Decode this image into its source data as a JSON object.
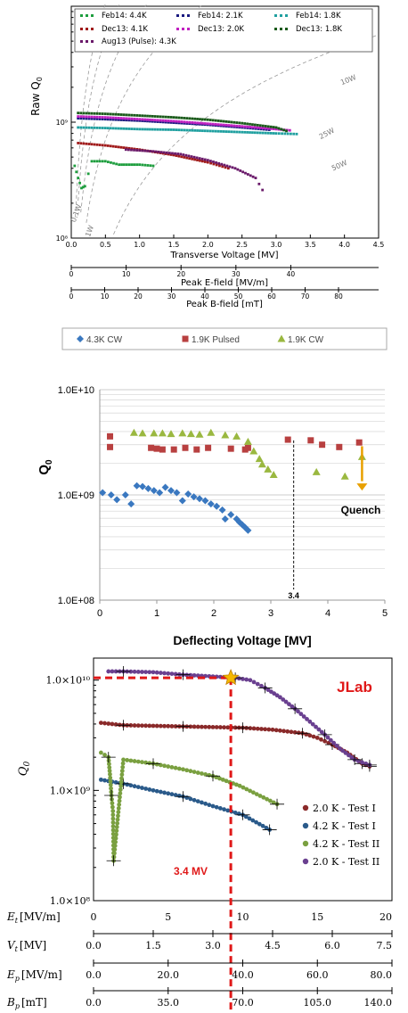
{
  "chart_data": [
    {
      "type": "scatter",
      "ylabel": "Raw Q",
      "ylabel_sub": "0",
      "ylog": true,
      "xlabel": "Transverse Voltage [MV]",
      "xlim": [
        0,
        4.5
      ],
      "ylim": [
        100000000.0,
        10000000000.0
      ],
      "xticks": [
        "0.0",
        "0.5",
        "1.0",
        "1.5",
        "2.0",
        "2.5",
        "3.0",
        "3.5",
        "4.0",
        "4.5"
      ],
      "yticks": [
        "10⁹",
        "10⁸"
      ],
      "extra_axes": [
        {
          "label": "Peak E-field [MV/m]",
          "ticks": [
            "0",
            "10",
            "20",
            "30",
            "40"
          ],
          "max": 56
        },
        {
          "label": "Peak B-field [mT]",
          "ticks": [
            "0",
            "10",
            "20",
            "30",
            "40",
            "50",
            "60",
            "70",
            "80"
          ],
          "max": 92
        }
      ],
      "power_curves": [
        "0.1W",
        "1W",
        "10W",
        "25W",
        "50W"
      ],
      "legend_position": "top",
      "series": [
        {
          "name": "Feb14: 4.4K",
          "color": "#1e9e3e",
          "points": [
            [
              0.05,
              0.42
            ],
            [
              0.1,
              0.33
            ],
            [
              0.15,
              0.27
            ],
            [
              0.2,
              0.28
            ],
            [
              0.3,
              0.46
            ],
            [
              0.5,
              0.46
            ],
            [
              0.7,
              0.43
            ],
            [
              1.0,
              0.43
            ],
            [
              1.2,
              0.42
            ]
          ]
        },
        {
          "name": "Dec13: 4.1K",
          "color": "#a01a1a",
          "points": [
            [
              0.1,
              0.66
            ],
            [
              0.5,
              0.63
            ],
            [
              1.0,
              0.58
            ],
            [
              1.5,
              0.52
            ],
            [
              2.0,
              0.45
            ],
            [
              2.3,
              0.4
            ]
          ]
        },
        {
          "name": "Aug13 (Pulse): 4.3K",
          "color": "#6a1a6a",
          "points": [
            [
              0.8,
              0.58
            ],
            [
              1.2,
              0.56
            ],
            [
              1.6,
              0.53
            ],
            [
              2.0,
              0.47
            ],
            [
              2.4,
              0.4
            ],
            [
              2.7,
              0.33
            ],
            [
              2.8,
              0.26
            ]
          ]
        },
        {
          "name": "Feb14: 2.1K",
          "color": "#1a1a80",
          "points": [
            [
              0.1,
              1.08
            ],
            [
              0.5,
              1.06
            ],
            [
              1.0,
              1.03
            ],
            [
              1.5,
              0.99
            ],
            [
              2.0,
              0.95
            ],
            [
              2.5,
              0.9
            ],
            [
              2.9,
              0.86
            ]
          ]
        },
        {
          "name": "Dec13: 2.0K",
          "color": "#c020c0",
          "points": [
            [
              0.1,
              1.12
            ],
            [
              0.5,
              1.1
            ],
            [
              1.0,
              1.06
            ],
            [
              1.5,
              1.02
            ],
            [
              2.0,
              0.97
            ],
            [
              2.5,
              0.92
            ],
            [
              3.0,
              0.87
            ],
            [
              3.2,
              0.85
            ]
          ]
        },
        {
          "name": "Feb14: 1.8K",
          "color": "#20a0a0",
          "points": [
            [
              0.1,
              0.9
            ],
            [
              0.5,
              0.89
            ],
            [
              1.0,
              0.87
            ],
            [
              1.5,
              0.86
            ],
            [
              2.0,
              0.84
            ],
            [
              2.5,
              0.82
            ],
            [
              3.0,
              0.8
            ],
            [
              3.3,
              0.79
            ]
          ]
        },
        {
          "name": "Dec13: 1.8K",
          "color": "#1a5a1a",
          "points": [
            [
              0.1,
              1.2
            ],
            [
              0.5,
              1.18
            ],
            [
              1.0,
              1.14
            ],
            [
              1.5,
              1.1
            ],
            [
              2.0,
              1.05
            ],
            [
              2.5,
              0.98
            ],
            [
              3.0,
              0.9
            ],
            [
              3.15,
              0.84
            ]
          ]
        }
      ]
    },
    {
      "type": "scatter",
      "ylabel": "Q",
      "ylabel_sub": "0",
      "ylog": true,
      "xlabel": "Deflecting Voltage [MV]",
      "xlim": [
        0,
        5
      ],
      "ylim": [
        100000000.0,
        10000000000.0
      ],
      "xticks": [
        "0",
        "1",
        "2",
        "3",
        "4",
        "5"
      ],
      "yticks": [
        "1.0E+10",
        "1.0E+09",
        "1.0E+08"
      ],
      "legend_position": "top",
      "annotations": [
        "3.4",
        "Quench"
      ],
      "series": [
        {
          "name": "4.3K CW",
          "color": "#3a78c0",
          "points": [
            [
              0.05,
              1050000000.0
            ],
            [
              0.2,
              1000000000.0
            ],
            [
              0.3,
              900000000.0
            ],
            [
              0.45,
              1000000000.0
            ],
            [
              0.55,
              820000000.0
            ],
            [
              0.65,
              1220000000.0
            ],
            [
              0.75,
              1200000000.0
            ],
            [
              0.85,
              1150000000.0
            ],
            [
              0.95,
              1100000000.0
            ],
            [
              1.05,
              1050000000.0
            ],
            [
              1.15,
              1180000000.0
            ],
            [
              1.25,
              1100000000.0
            ],
            [
              1.35,
              1050000000.0
            ],
            [
              1.45,
              880000000.0
            ],
            [
              1.55,
              1020000000.0
            ],
            [
              1.65,
              960000000.0
            ],
            [
              1.75,
              920000000.0
            ],
            [
              1.85,
              880000000.0
            ],
            [
              1.95,
              820000000.0
            ],
            [
              2.05,
              780000000.0
            ],
            [
              2.15,
              720000000.0
            ],
            [
              2.2,
              590000000.0
            ],
            [
              2.3,
              650000000.0
            ],
            [
              2.4,
              590000000.0
            ],
            [
              2.45,
              550000000.0
            ],
            [
              2.5,
              520000000.0
            ],
            [
              2.55,
              490000000.0
            ],
            [
              2.6,
              460000000.0
            ]
          ]
        },
        {
          "name": "1.9K Pulsed",
          "color": "#b84040",
          "points": [
            [
              0.18,
              2850000000.0
            ],
            [
              0.18,
              3600000000.0
            ],
            [
              0.9,
              2800000000.0
            ],
            [
              1.0,
              2750000000.0
            ],
            [
              1.1,
              2700000000.0
            ],
            [
              1.3,
              2700000000.0
            ],
            [
              1.5,
              2800000000.0
            ],
            [
              1.7,
              2700000000.0
            ],
            [
              1.9,
              2800000000.0
            ],
            [
              2.3,
              2750000000.0
            ],
            [
              2.55,
              2700000000.0
            ],
            [
              2.6,
              2800000000.0
            ],
            [
              3.3,
              3350000000.0
            ],
            [
              3.7,
              3300000000.0
            ],
            [
              3.9,
              3000000000.0
            ],
            [
              4.2,
              2850000000.0
            ],
            [
              4.55,
              3150000000.0
            ]
          ]
        },
        {
          "name": "1.9K CW",
          "color": "#9ab840",
          "points": [
            [
              0.6,
              3900000000.0
            ],
            [
              0.75,
              3850000000.0
            ],
            [
              0.95,
              3850000000.0
            ],
            [
              1.1,
              3850000000.0
            ],
            [
              1.25,
              3800000000.0
            ],
            [
              1.45,
              3850000000.0
            ],
            [
              1.6,
              3800000000.0
            ],
            [
              1.75,
              3750000000.0
            ],
            [
              1.95,
              3900000000.0
            ],
            [
              2.2,
              3700000000.0
            ],
            [
              2.4,
              3600000000.0
            ],
            [
              2.6,
              3200000000.0
            ],
            [
              2.7,
              2600000000.0
            ],
            [
              2.8,
              2200000000.0
            ],
            [
              2.85,
              1950000000.0
            ],
            [
              2.95,
              1750000000.0
            ],
            [
              3.05,
              1550000000.0
            ],
            [
              3.8,
              1650000000.0
            ],
            [
              4.3,
              1500000000.0
            ],
            [
              4.6,
              2300000000.0
            ]
          ]
        }
      ]
    },
    {
      "type": "scatter",
      "ylabel": "Q",
      "ylabel_sub": "0",
      "ylog": true,
      "title_tag": "JLab",
      "xlim": [
        0,
        20
      ],
      "ylim": [
        100000000.0,
        20000000000.0
      ],
      "yticks": [
        "1.0×10¹⁰",
        "1.0×10⁹",
        "1.0×10⁸"
      ],
      "marker_label": "3.4 MV",
      "extra_axes": [
        {
          "label": "E",
          "sub": "t",
          "unit": "[MV/m]",
          "ticks": [
            "0",
            "5",
            "10",
            "15",
            "20"
          ]
        },
        {
          "label": "V",
          "sub": "t",
          "unit": "[MV]",
          "ticks": [
            "0.0",
            "1.5",
            "3.0",
            "4.5",
            "6.0",
            "7.5"
          ]
        },
        {
          "label": "E",
          "sub": "p",
          "unit": "[MV/m]",
          "ticks": [
            "0.0",
            "20.0",
            "40.0",
            "60.0",
            "80.0"
          ]
        },
        {
          "label": "B",
          "sub": "p",
          "unit": "[mT]",
          "ticks": [
            "0.0",
            "35.0",
            "70.0",
            "105.0",
            "140.0"
          ]
        }
      ],
      "legend_position": "bottom-right",
      "series": [
        {
          "name": "2.0 K - Test I",
          "color": "#8a2a2a",
          "points": [
            [
              0.5,
              4100000000.0
            ],
            [
              2,
              3900000000.0
            ],
            [
              4,
              3850000000.0
            ],
            [
              6,
              3800000000.0
            ],
            [
              8,
              3750000000.0
            ],
            [
              10,
              3700000000.0
            ],
            [
              12,
              3550000000.0
            ],
            [
              14,
              3300000000.0
            ],
            [
              15,
              3000000000.0
            ],
            [
              16,
              2600000000.0
            ],
            [
              17,
              2200000000.0
            ],
            [
              18,
              1750000000.0
            ],
            [
              18.5,
              1650000000.0
            ]
          ]
        },
        {
          "name": "4.2 K - Test I",
          "color": "#2a5a8a",
          "points": [
            [
              0.5,
              1250000000.0
            ],
            [
              2,
              1150000000.0
            ],
            [
              4,
              1000000000.0
            ],
            [
              6,
              880000000.0
            ],
            [
              8,
              720000000.0
            ],
            [
              10,
              600000000.0
            ],
            [
              11.8,
              440000000.0
            ]
          ]
        },
        {
          "name": "4.2 K - Test II",
          "color": "#7aa040",
          "points": [
            [
              0.5,
              2200000000.0
            ],
            [
              1,
              2000000000.0
            ],
            [
              1.1,
              1400000000.0
            ],
            [
              1.2,
              900000000.0
            ],
            [
              1.3,
              650000000.0
            ],
            [
              1.35,
              230000000.0
            ],
            [
              2,
              1900000000.0
            ],
            [
              4,
              1750000000.0
            ],
            [
              6,
              1550000000.0
            ],
            [
              8,
              1350000000.0
            ],
            [
              9.8,
              1100000000.0
            ],
            [
              12.3,
              750000000.0
            ]
          ]
        },
        {
          "name": "2.0 K - Test II",
          "color": "#6a4090",
          "points": [
            [
              1,
              12000000000.0
            ],
            [
              2,
              12000000000.0
            ],
            [
              4,
              11800000000.0
            ],
            [
              6,
              11200000000.0
            ],
            [
              8,
              10800000000.0
            ],
            [
              9.5,
              10500000000.0
            ],
            [
              10.5,
              10000000000.0
            ],
            [
              11.5,
              8500000000.0
            ],
            [
              12.5,
              7000000000.0
            ],
            [
              13.5,
              5500000000.0
            ],
            [
              14.5,
              4200000000.0
            ],
            [
              15.5,
              3200000000.0
            ],
            [
              16.5,
              2400000000.0
            ],
            [
              17.5,
              1900000000.0
            ],
            [
              18.5,
              1700000000.0
            ]
          ]
        }
      ]
    }
  ]
}
